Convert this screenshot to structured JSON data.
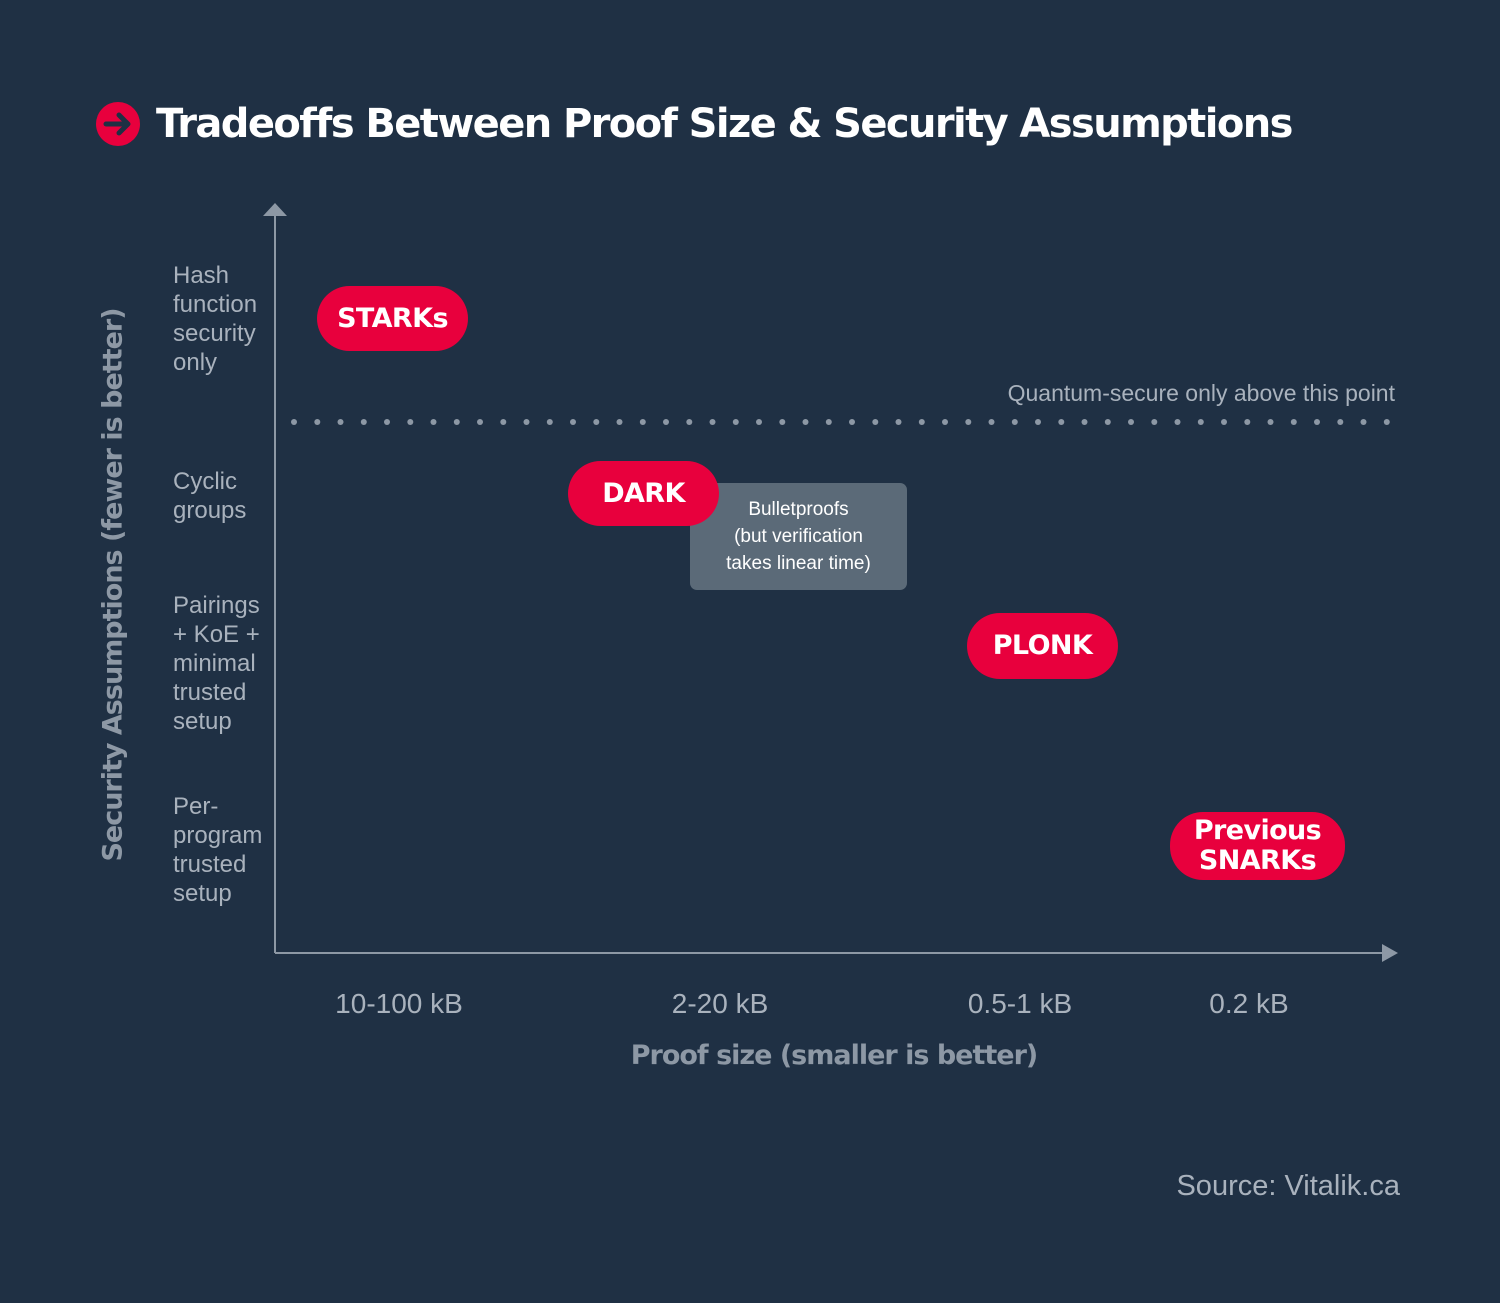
{
  "title": "Tradeoffs Between Proof Size & Security Assumptions",
  "colors": {
    "background": "#1f3044",
    "accent": "#e8003d",
    "box": "#5b6a78",
    "axis": "#8d98a5",
    "muted_text": "#a9b2bd"
  },
  "title_icon": "arrow-right-circle-icon",
  "y_axis": {
    "label": "Security Assumptions (fewer is better)",
    "ticks": [
      "Hash\nfunction\nsecurity\nonly",
      "Cyclic\ngroups",
      "Pairings\n+ KoE +\nminimal\ntrusted\nsetup",
      "Per-\nprogram\ntrusted\nsetup"
    ]
  },
  "x_axis": {
    "label": "Proof size (smaller is better)",
    "ticks": [
      "10-100 kB",
      "2-20 kB",
      "0.5-1 kB",
      "0.2 kB"
    ]
  },
  "threshold": {
    "label": "Quantum-secure only above this point"
  },
  "systems": [
    {
      "name": "STARKs",
      "proof_size": "10-100 kB",
      "security": "Hash function security only"
    },
    {
      "name": "DARK",
      "proof_size": "2-20 kB",
      "security": "Cyclic groups"
    },
    {
      "name": "PLONK",
      "proof_size": "0.5-1 kB",
      "security": "Pairings + KoE + minimal trusted setup"
    },
    {
      "name": "Previous\nSNARKs",
      "proof_size": "0.2 kB",
      "security": "Per-program trusted setup"
    }
  ],
  "note_box": "Bulletproofs\n(but verification\ntakes linear time)",
  "source": "Source: Vitalik.ca"
}
